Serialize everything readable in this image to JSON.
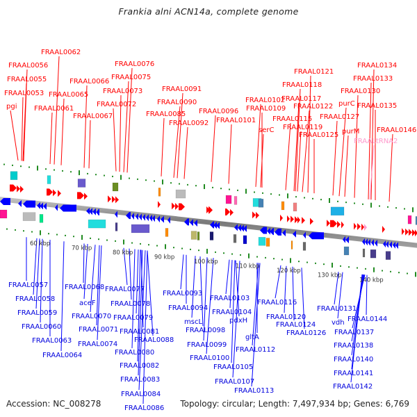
{
  "title": "Frankia alni ACN14a, complete genome",
  "footer": {
    "accession": "Accession: NC_008278",
    "summary": "Topology: circular; Length: 7,497,934 bp; Genes: 6,769"
  },
  "colors": {
    "forward_gene": "#ff0000",
    "reverse_gene": "#0000ff",
    "trna": "#ff99cc",
    "backbone": "#808080",
    "tick": "#228b22",
    "forward_label": "#ff0000",
    "reverse_label": "#0000dd"
  },
  "scale": {
    "unit": "kbp",
    "ticks": [
      "60 kbp",
      "70 kbp",
      "80 kbp",
      "90 kbp",
      "100 kbp",
      "110 kbp",
      "120 kbp",
      "130 kbp",
      "140 kbp"
    ]
  },
  "forward_labels": [
    {
      "text": "FRAAL0062"
    },
    {
      "text": "FRAAL0056"
    },
    {
      "text": "FRAAL0055"
    },
    {
      "text": "FRAAL0053"
    },
    {
      "text": "pgi"
    },
    {
      "text": "FRAAL0065"
    },
    {
      "text": "FRAAL0061"
    },
    {
      "text": "FRAAL0066"
    },
    {
      "text": "FRAAL0067"
    },
    {
      "text": "FRAAL0076"
    },
    {
      "text": "FRAAL0075"
    },
    {
      "text": "FRAAL0073"
    },
    {
      "text": "FRAAL0072"
    },
    {
      "text": "FRAAL0091"
    },
    {
      "text": "FRAAL0090"
    },
    {
      "text": "FRAAL0085"
    },
    {
      "text": "FRAAL0092"
    },
    {
      "text": "FRAAL0096"
    },
    {
      "text": "FRAAL0102"
    },
    {
      "text": "FRAAL0101"
    },
    {
      "text": "FRAAL0109"
    },
    {
      "text": "serC"
    },
    {
      "text": "FRAAL0121"
    },
    {
      "text": "FRAAL0118"
    },
    {
      "text": "FRAAL0117"
    },
    {
      "text": "FRAAL0122"
    },
    {
      "text": "FRAAL0115"
    },
    {
      "text": "FRAAL0119"
    },
    {
      "text": "FRAAL0125"
    },
    {
      "text": "FRAAL0127"
    },
    {
      "text": "purC"
    },
    {
      "text": "purM"
    },
    {
      "text": "FRAAL0134"
    },
    {
      "text": "FRAAL0133"
    },
    {
      "text": "FRAAL0130"
    },
    {
      "text": "FRAAL0135"
    },
    {
      "text": "FRAALtRNA2",
      "kind": "trna"
    },
    {
      "text": "FRAAL0146"
    }
  ],
  "reverse_labels": [
    {
      "text": "FRAAL0057"
    },
    {
      "text": "FRAAL0058"
    },
    {
      "text": "FRAAL0059"
    },
    {
      "text": "FRAAL0060"
    },
    {
      "text": "FRAAL0063"
    },
    {
      "text": "FRAAL0064"
    },
    {
      "text": "FRAAL0068"
    },
    {
      "text": "aceF"
    },
    {
      "text": "FRAAL0070"
    },
    {
      "text": "FRAAL0071"
    },
    {
      "text": "FRAAL0074"
    },
    {
      "text": "FRAAL0077"
    },
    {
      "text": "FRAAL0078"
    },
    {
      "text": "FRAAL0079"
    },
    {
      "text": "FRAAL0081"
    },
    {
      "text": "FRAAL0088"
    },
    {
      "text": "FRAAL0080"
    },
    {
      "text": "FRAAL0082"
    },
    {
      "text": "FRAAL0083"
    },
    {
      "text": "FRAAL0084"
    },
    {
      "text": "FRAAL0086"
    },
    {
      "text": "FRAAL0093"
    },
    {
      "text": "FRAAL0094"
    },
    {
      "text": "mscL"
    },
    {
      "text": "FRAAL0098"
    },
    {
      "text": "FRAAL0099"
    },
    {
      "text": "FRAAL0100"
    },
    {
      "text": "FRAAL0103"
    },
    {
      "text": "FRAAL0104"
    },
    {
      "text": "pdxH"
    },
    {
      "text": "FRAAL0105"
    },
    {
      "text": "FRAAL0107"
    },
    {
      "text": "gltA"
    },
    {
      "text": "FRAAL0112"
    },
    {
      "text": "FRAAL0113"
    },
    {
      "text": "FRAAL0116"
    },
    {
      "text": "FRAAL0120"
    },
    {
      "text": "FRAAL0124"
    },
    {
      "text": "FRAAL0126"
    },
    {
      "text": "FRAAL0131"
    },
    {
      "text": "vdh"
    },
    {
      "text": "FRAAL0144"
    },
    {
      "text": "FRAAL0137"
    },
    {
      "text": "FRAAL0138"
    },
    {
      "text": "FRAAL0140"
    },
    {
      "text": "FRAAL0141"
    },
    {
      "text": "FRAAL0142"
    }
  ],
  "cog_colors": {
    "cyan": "#00cccc",
    "aqua": "#22dddd",
    "slate": "#6a5acd",
    "olive": "#6b8e23",
    "orange": "#ff8c00",
    "grey": "#bbbbbb",
    "magenta": "#ff1493",
    "pink": "#ff69b4",
    "steel": "#4682b4",
    "navy": "#191970",
    "darkslate": "#483d8b",
    "green": "#32cd32",
    "khaki": "#bdb76b",
    "dimgrey": "#696969",
    "skyblue": "#1eb0e6",
    "salmon": "#f08080",
    "mint": "#00e68a",
    "blue": "#0000cd"
  }
}
